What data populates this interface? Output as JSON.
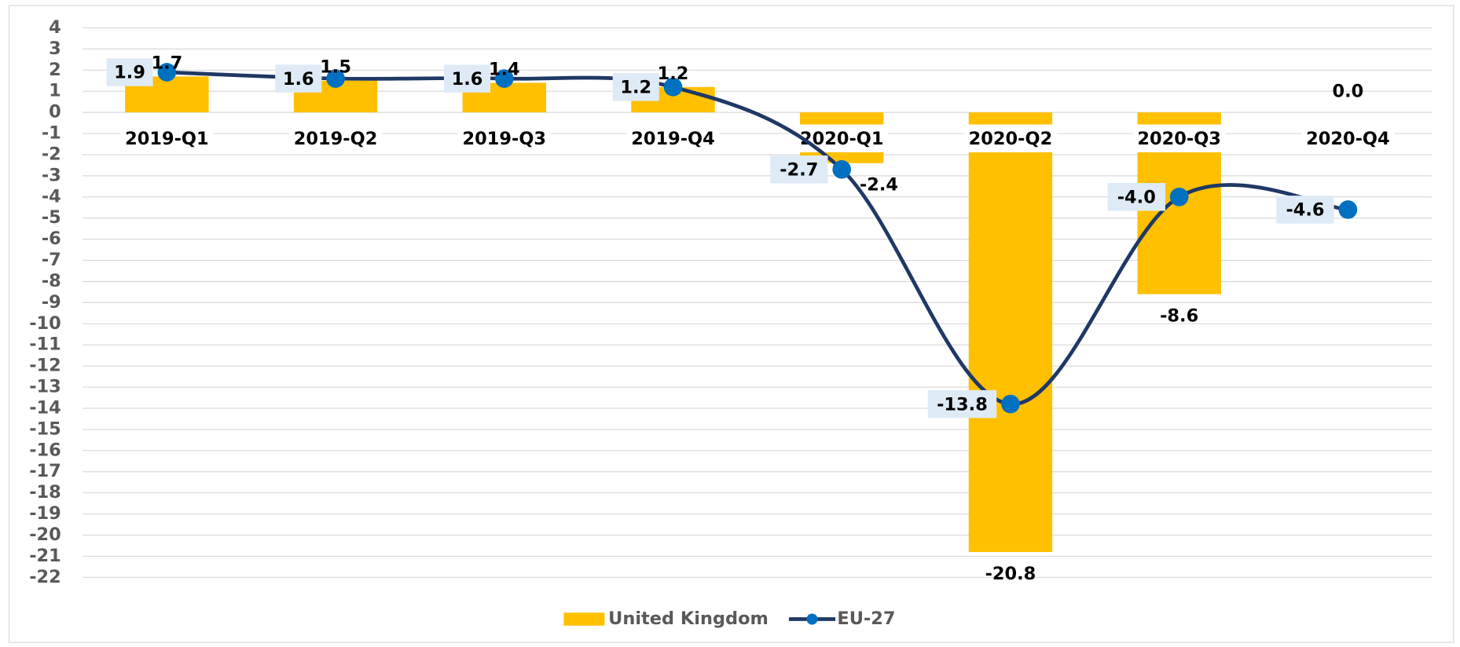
{
  "chart_data": {
    "type": "bar_line",
    "categories": [
      "2019-Q1",
      "2019-Q2",
      "2019-Q3",
      "2019-Q4",
      "2020-Q1",
      "2020-Q2",
      "2020-Q3",
      "2020-Q4"
    ],
    "series": [
      {
        "name": "United Kingdom",
        "type": "bar",
        "color": "#FFC000",
        "values": [
          1.7,
          1.5,
          1.4,
          1.2,
          -2.4,
          -20.8,
          -8.6,
          0.0
        ],
        "value_labels": [
          "1.7",
          "1.5",
          "1.4",
          "1.2",
          "-2.4",
          "-20.8",
          "-8.6",
          "0.0"
        ]
      },
      {
        "name": "EU-27",
        "type": "line",
        "color": "#1F3864",
        "marker_color": "#0070C0",
        "values": [
          1.9,
          1.6,
          1.6,
          1.2,
          -2.7,
          -13.8,
          -4.0,
          -4.6
        ],
        "value_labels": [
          "1.9",
          "1.6",
          "1.6",
          "1.2",
          "-2.7",
          "-13.8",
          "-4.0",
          "-4.6"
        ]
      }
    ],
    "ylim": [
      -22,
      4
    ],
    "yticks": [
      4,
      3,
      2,
      1,
      0,
      -1,
      -2,
      -3,
      -4,
      -5,
      -6,
      -7,
      -8,
      -9,
      -10,
      -11,
      -12,
      -13,
      -14,
      -15,
      -16,
      -17,
      -18,
      -19,
      -20,
      -21,
      -22
    ],
    "grid": true,
    "legend": "bottom"
  }
}
